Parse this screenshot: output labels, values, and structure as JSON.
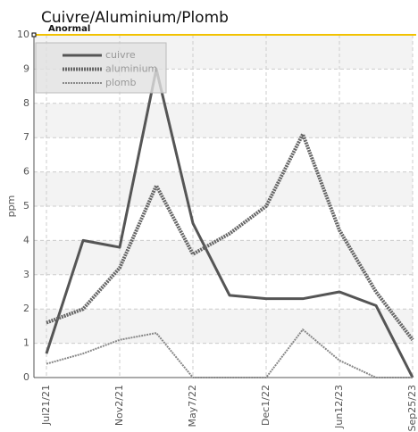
{
  "chart_data": {
    "type": "line",
    "title": "Cuivre/Aluminium/Plomb",
    "ylabel": "ppm",
    "categories": [
      "Jul21/21",
      null,
      "Nov2/21",
      null,
      "May7/22",
      null,
      "Dec1/22",
      null,
      "Jun12/23",
      null,
      "Sep25/23"
    ],
    "series": [
      {
        "name": "cuivre",
        "color": "#555555",
        "dash": "solid",
        "width": 3,
        "values": [
          0.7,
          4.0,
          3.8,
          9.0,
          4.5,
          2.4,
          2.3,
          2.3,
          2.5,
          2.1,
          0
        ]
      },
      {
        "name": "aluminium",
        "color": "#666666",
        "dash": "dotted",
        "width": 4,
        "values": [
          1.6,
          2.0,
          3.2,
          5.6,
          3.6,
          4.2,
          5.0,
          7.1,
          4.3,
          2.5,
          1.1
        ]
      },
      {
        "name": "plomb",
        "color": "#888888",
        "dash": "dotted",
        "width": 2,
        "values": [
          0.4,
          0.7,
          1.1,
          1.3,
          0,
          0,
          0,
          1.4,
          0.5,
          0,
          0
        ]
      }
    ],
    "threshold": {
      "value": 10,
      "label": "Anormal",
      "color": "#f2c200"
    },
    "ylim": [
      0,
      10
    ],
    "yticks": [
      0,
      1,
      2,
      3,
      4,
      5,
      6,
      7,
      8,
      9,
      10
    ],
    "grid": true,
    "legend": "top-left"
  }
}
